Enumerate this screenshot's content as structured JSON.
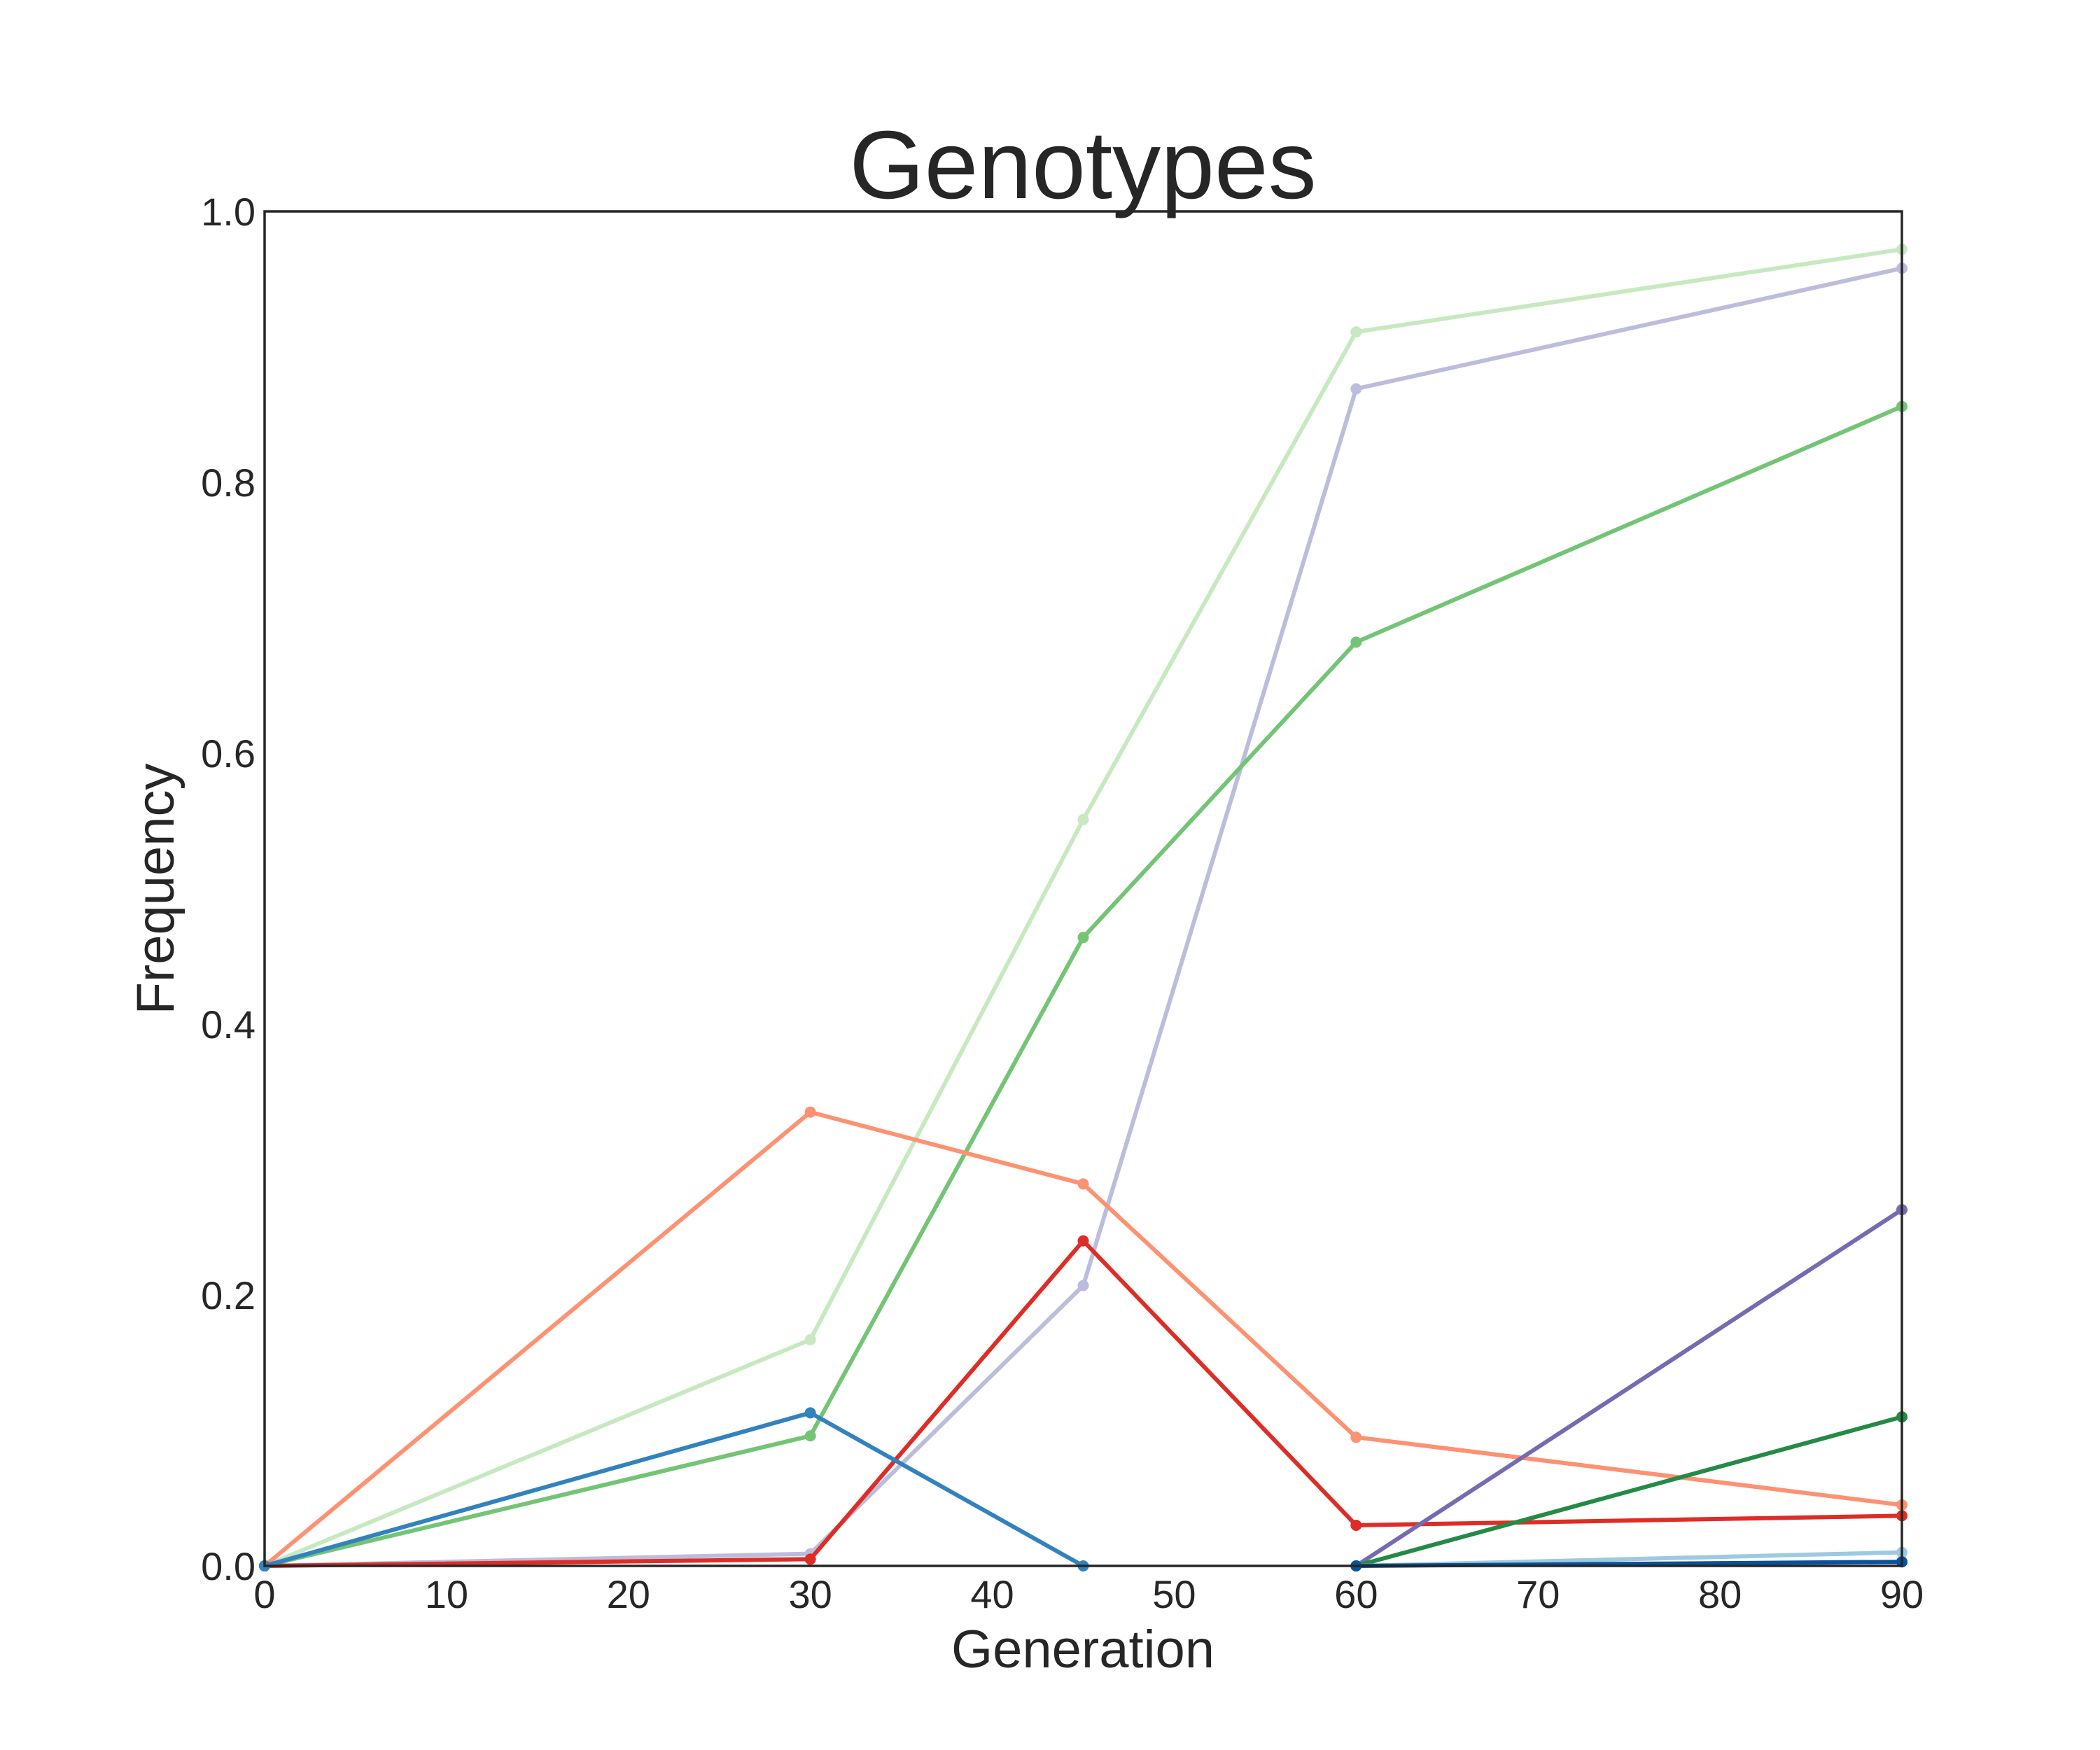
{
  "chart_data": {
    "type": "line",
    "title": "Genotypes",
    "xlabel": "Generation",
    "ylabel": "Frequency",
    "xlim": [
      0,
      90
    ],
    "ylim": [
      0,
      1.0
    ],
    "xticks": [
      0,
      10,
      20,
      30,
      40,
      50,
      60,
      70,
      80,
      90
    ],
    "yticks": [
      0.0,
      0.2,
      0.4,
      0.6,
      0.8,
      1.0
    ],
    "ytick_labels": [
      "0.0",
      "0.2",
      "0.4",
      "0.6",
      "0.8",
      "1.0"
    ],
    "grid": false,
    "legend": false,
    "series": [
      {
        "color": "#c7e9c0",
        "points": [
          [
            0,
            0
          ],
          [
            30,
            0.167
          ],
          [
            45,
            0.551
          ],
          [
            60,
            0.911
          ],
          [
            90,
            0.972
          ]
        ]
      },
      {
        "color": "#bcbddc",
        "points": [
          [
            0,
            0
          ],
          [
            30,
            0.009
          ],
          [
            45,
            0.207
          ],
          [
            60,
            0.869
          ],
          [
            90,
            0.958
          ]
        ]
      },
      {
        "color": "#74c476",
        "points": [
          [
            0,
            0
          ],
          [
            30,
            0.096
          ],
          [
            45,
            0.464
          ],
          [
            60,
            0.682
          ],
          [
            90,
            0.856
          ]
        ]
      },
      {
        "color": "#fc9272",
        "points": [
          [
            0,
            0
          ],
          [
            30,
            0.335
          ],
          [
            45,
            0.282
          ],
          [
            60,
            0.095
          ],
          [
            90,
            0.045
          ]
        ]
      },
      {
        "color": "#de2d26",
        "points": [
          [
            0,
            0
          ],
          [
            30,
            0.005
          ],
          [
            45,
            0.24
          ],
          [
            60,
            0.03
          ],
          [
            90,
            0.037
          ]
        ]
      },
      {
        "color": "#3182bd",
        "points": [
          [
            0,
            0
          ],
          [
            30,
            0.113
          ],
          [
            45,
            0.0
          ]
        ]
      },
      {
        "color": "#756bb1",
        "points": [
          [
            60,
            0.0
          ],
          [
            90,
            0.263
          ]
        ]
      },
      {
        "color": "#238b45",
        "points": [
          [
            60,
            0.0
          ],
          [
            90,
            0.11
          ]
        ]
      },
      {
        "color": "#9ecae1",
        "points": [
          [
            60,
            0.0
          ],
          [
            90,
            0.01
          ]
        ]
      },
      {
        "color": "#08519c",
        "points": [
          [
            60,
            0.0
          ],
          [
            90,
            0.003
          ]
        ]
      }
    ]
  }
}
